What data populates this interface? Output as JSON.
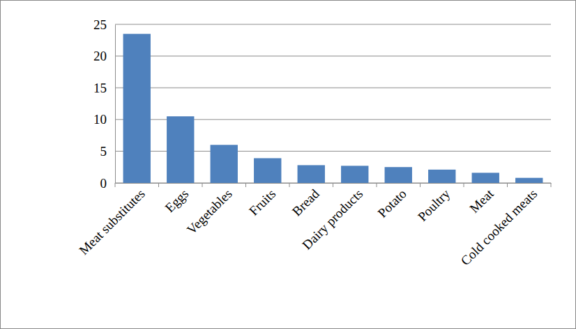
{
  "chart_data": {
    "type": "bar",
    "categories": [
      "Meat substitutes",
      "Eggs",
      "Vegetables",
      "Fruits",
      "Bread",
      "Dairy products",
      "Potato",
      "Poultry",
      "Meat",
      "Cold cooked meats"
    ],
    "values": [
      23.5,
      10.5,
      6,
      3.9,
      2.8,
      2.7,
      2.5,
      2.1,
      1.6,
      0.8
    ],
    "color": "#4f81bd",
    "ylim": [
      0,
      25
    ],
    "yticks": [
      0,
      5,
      10,
      15,
      20,
      25
    ],
    "grid": true
  }
}
